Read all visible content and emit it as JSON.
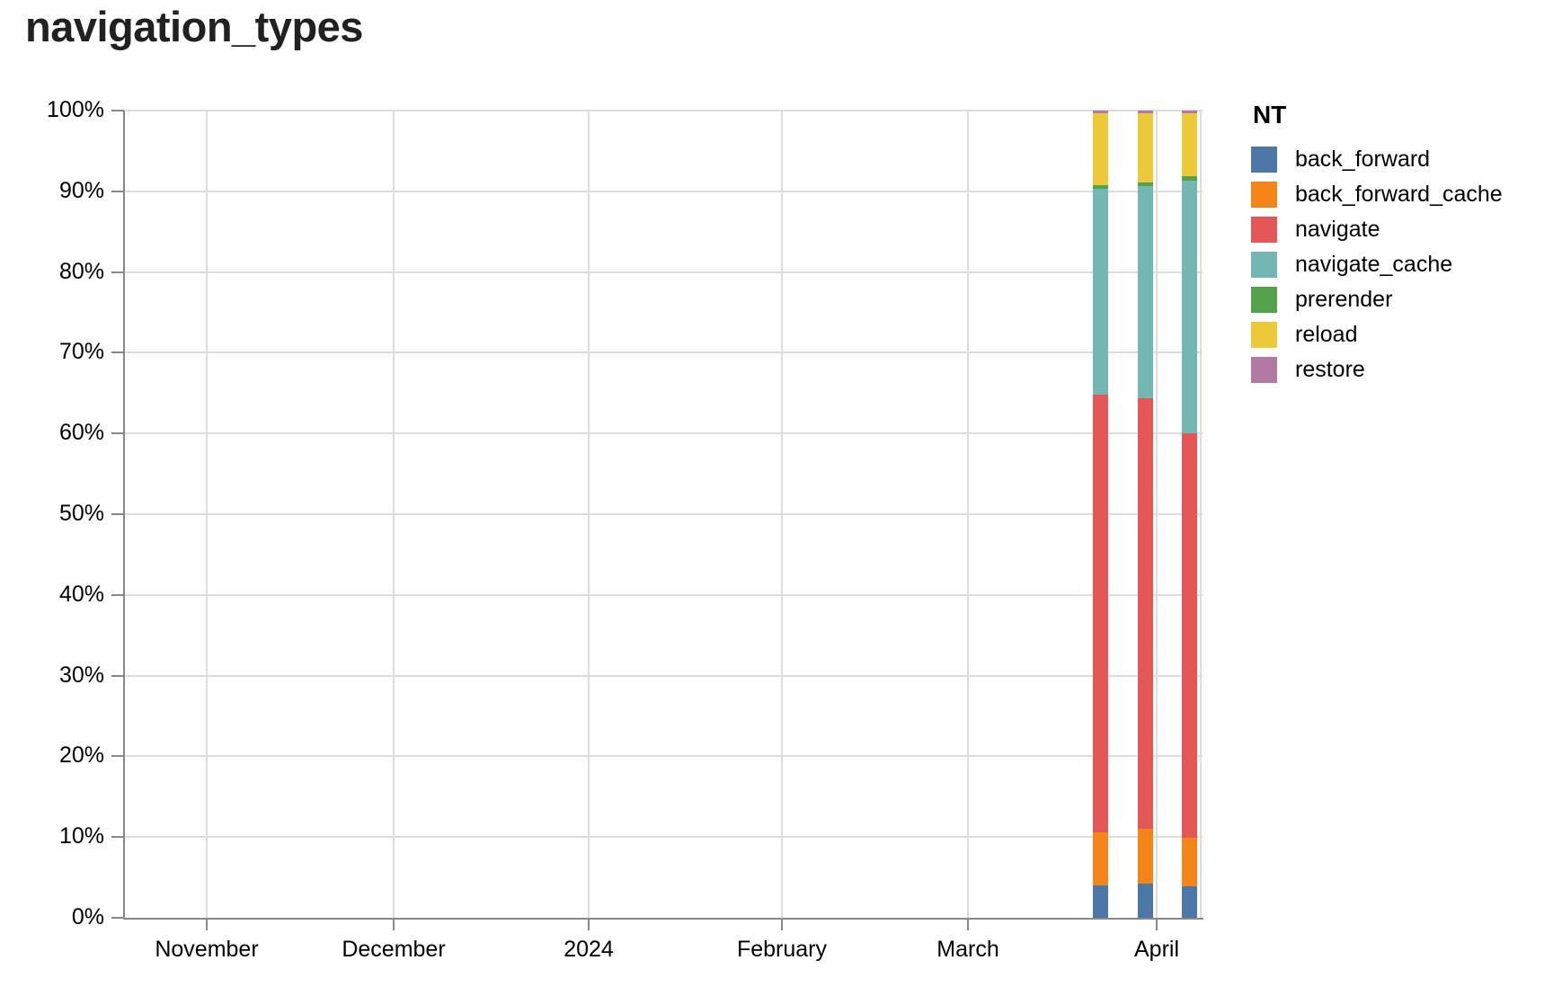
{
  "title": "navigation_types",
  "legend": {
    "title": "NT",
    "entries": [
      {
        "label": "back_forward",
        "color": "#4c78a8",
        "icon": "swatch-blue"
      },
      {
        "label": "back_forward_cache",
        "color": "#f58518",
        "icon": "swatch-orange"
      },
      {
        "label": "navigate",
        "color": "#e45756",
        "icon": "swatch-red"
      },
      {
        "label": "navigate_cache",
        "color": "#72b7b2",
        "icon": "swatch-teal"
      },
      {
        "label": "prerender",
        "color": "#54a24b",
        "icon": "swatch-green"
      },
      {
        "label": "reload",
        "color": "#eeca3b",
        "icon": "swatch-yellow"
      },
      {
        "label": "restore",
        "color": "#b279a2",
        "icon": "swatch-purple"
      }
    ]
  },
  "chart_data": {
    "type": "bar",
    "variant": "stacked-normalized-100pct",
    "title": "navigation_types",
    "legend_title": "NT",
    "legend_position": "right",
    "grid": true,
    "x_axis": {
      "type": "temporal",
      "tick_labels": [
        "November",
        "December",
        "2024",
        "February",
        "March",
        "April"
      ]
    },
    "y_axis": {
      "tick_labels": [
        "0%",
        "10%",
        "20%",
        "30%",
        "40%",
        "50%",
        "60%",
        "70%",
        "80%",
        "90%",
        "100%"
      ],
      "range_pct": [
        0,
        100
      ]
    },
    "stack_order_bottom_to_top": [
      "back_forward",
      "back_forward_cache",
      "navigate",
      "navigate_cache",
      "prerender",
      "reload",
      "restore"
    ],
    "series_colors": {
      "back_forward": "#4c78a8",
      "back_forward_cache": "#f58518",
      "navigate": "#e45756",
      "navigate_cache": "#72b7b2",
      "prerender": "#54a24b",
      "reload": "#eeca3b",
      "restore": "#b279a2"
    },
    "bars": [
      {
        "x_approx": "week of ~Mar 24 (before April gridline)",
        "values_pct": {
          "back_forward": 4.0,
          "back_forward_cache": 6.6,
          "navigate": 54.2,
          "navigate_cache": 25.5,
          "prerender": 0.5,
          "reload": 8.9,
          "restore": 0.3
        }
      },
      {
        "x_approx": "week of ~Mar 31 (just before April gridline)",
        "values_pct": {
          "back_forward": 4.2,
          "back_forward_cache": 6.8,
          "navigate": 53.4,
          "navigate_cache": 26.2,
          "prerender": 0.5,
          "reload": 8.6,
          "restore": 0.3
        }
      },
      {
        "x_approx": "week of ~Apr 7 (after April gridline)",
        "values_pct": {
          "back_forward": 3.9,
          "back_forward_cache": 6.0,
          "navigate": 50.1,
          "navigate_cache": 31.3,
          "prerender": 0.6,
          "reload": 7.8,
          "restore": 0.3
        }
      }
    ]
  },
  "colors": {
    "gridline": "#dddddd",
    "axis": "#888888",
    "text": "#000000",
    "title_text": "#212121",
    "background": "#ffffff"
  }
}
